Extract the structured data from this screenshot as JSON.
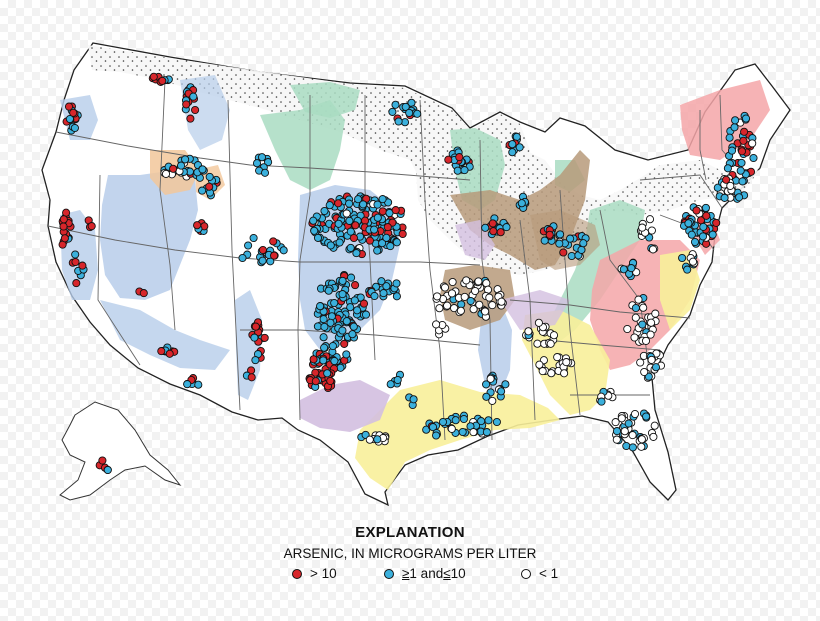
{
  "legend": {
    "title": "EXPLANATION",
    "subtitle": "ARSENIC, IN MICROGRAMS PER LITER",
    "items": [
      {
        "id": "high",
        "prefix": "> 10",
        "color": "#d7262b"
      },
      {
        "id": "mid",
        "op1": "≥",
        "val1": "1 and ",
        "op2": "≤",
        "val2": " 10",
        "color": "#3bb0dc"
      },
      {
        "id": "low",
        "prefix": "< 1",
        "color": "#ffffff"
      }
    ]
  },
  "colors": {
    "state_outline": "#555555",
    "country_outline": "#222222",
    "aquifer_blue": "#b7cdea",
    "aquifer_green": "#a9dcc2",
    "aquifer_brown": "#b79a7a",
    "aquifer_pink": "#f5a6a8",
    "aquifer_yellow": "#f8ef9a",
    "aquifer_purple": "#d3bfe0",
    "aquifer_tan": "#f2c79a",
    "stipple": "#f2f2f2"
  }
}
